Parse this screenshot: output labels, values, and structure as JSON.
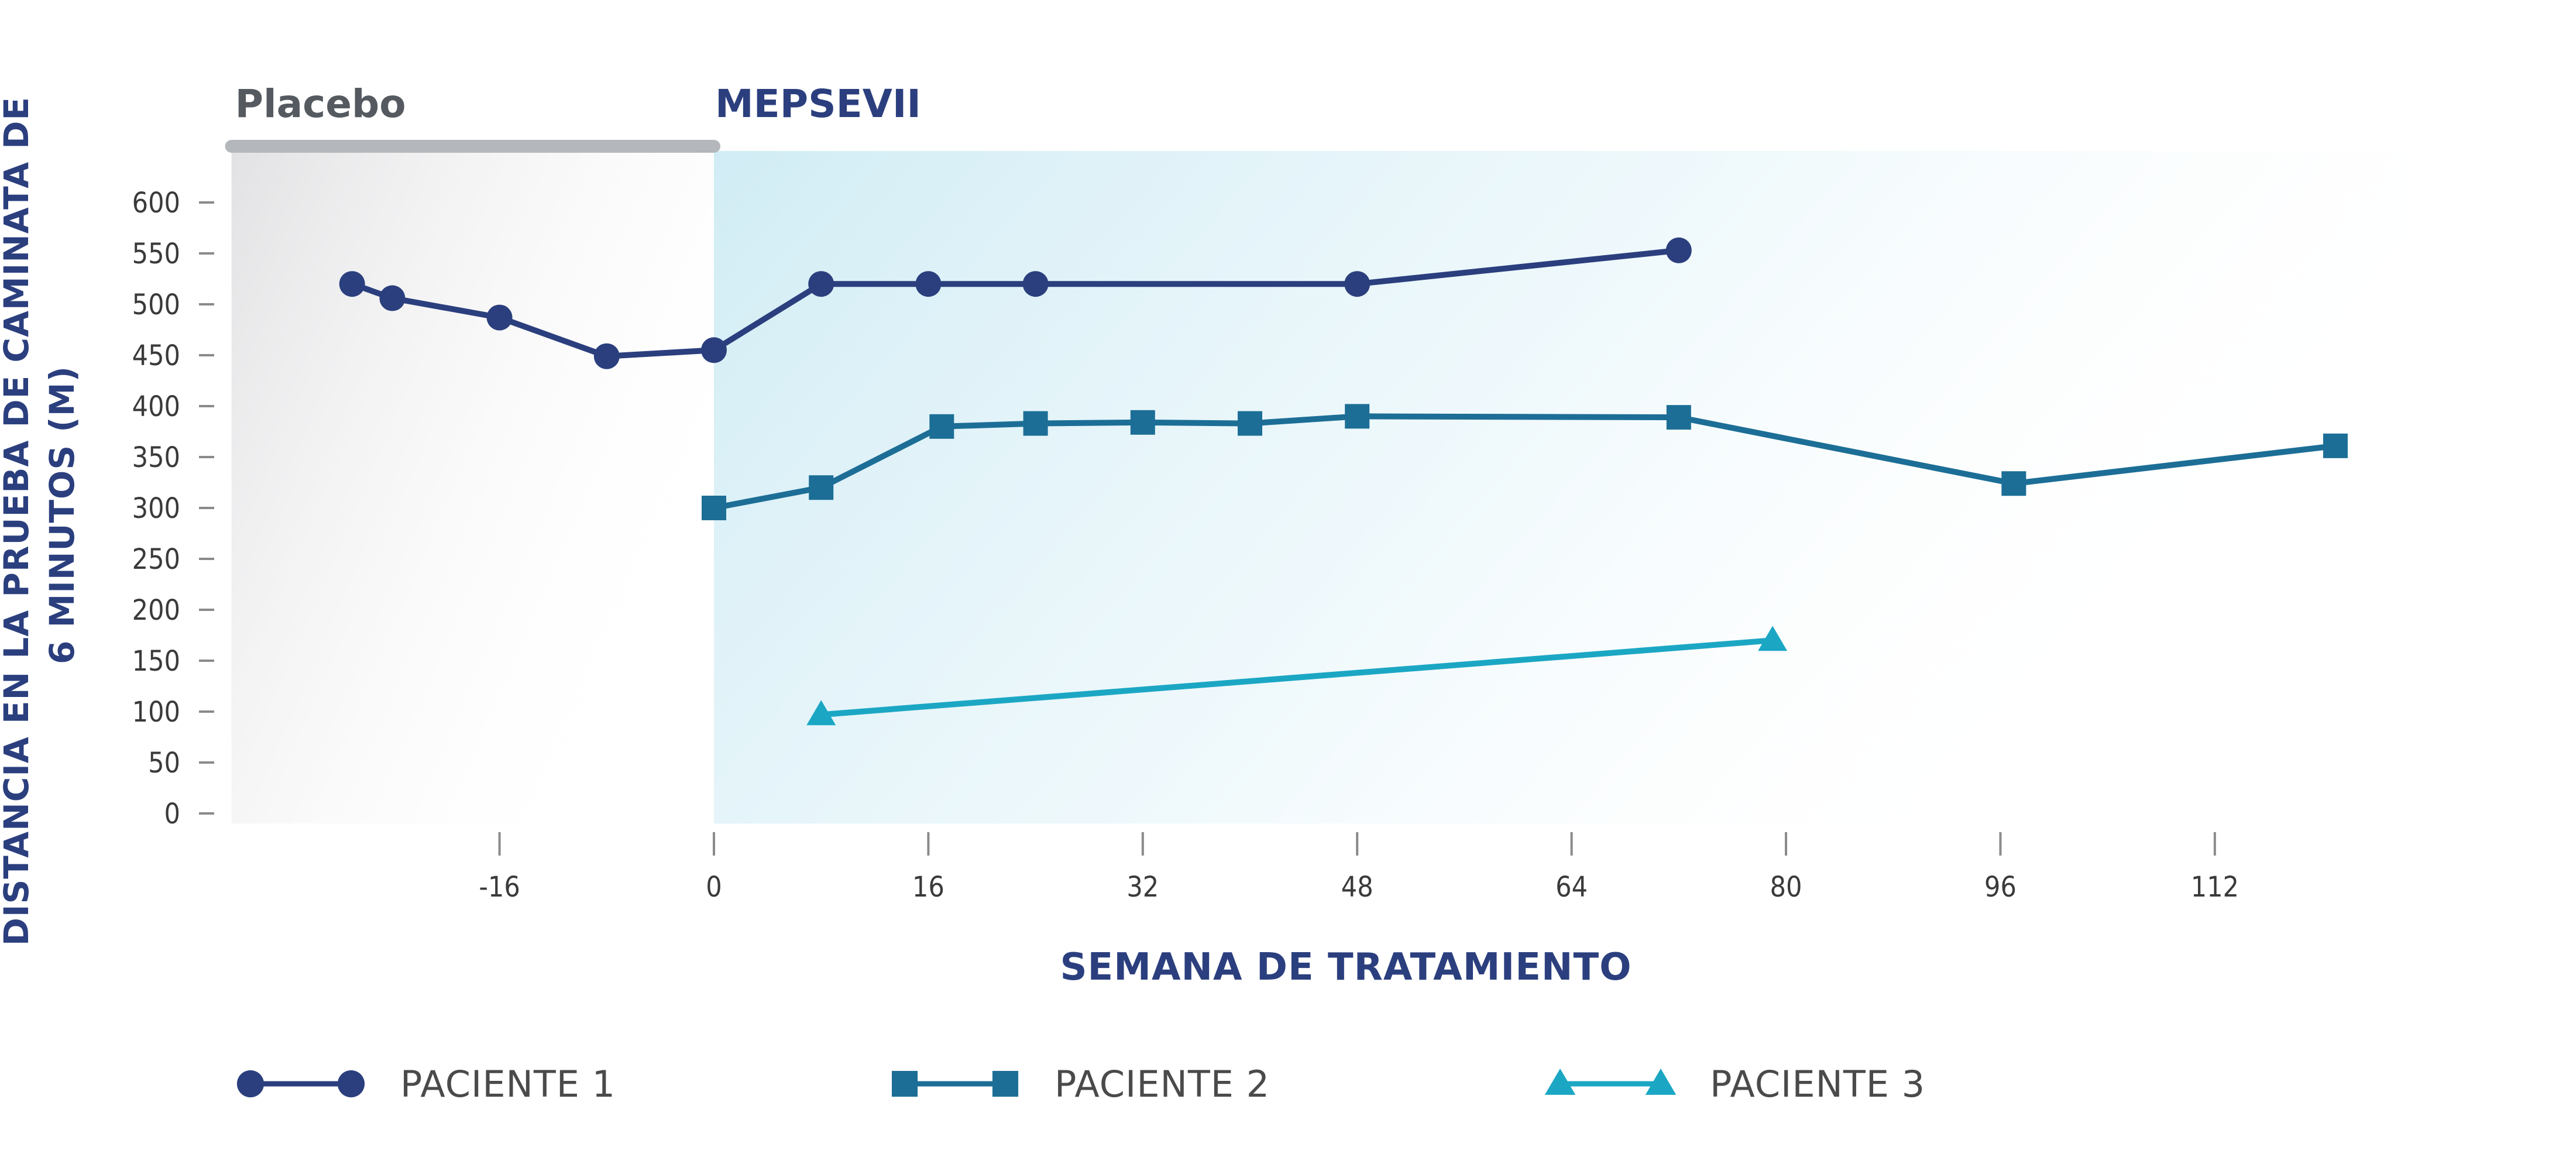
{
  "chart_data": {
    "type": "line",
    "title": "",
    "xlabel": "SEMANA DE TRATAMIENTO",
    "ylabel_lines": [
      "DISTANCIA EN LA PRUEBA DE CAMINATA DE",
      "6 MINUTOS (M)"
    ],
    "xlim": [
      -46,
      170
    ],
    "ylim": [
      0,
      600
    ],
    "x_ticks": [
      -16,
      0,
      16,
      32,
      48,
      64,
      80,
      96,
      112
    ],
    "y_ticks": [
      0,
      50,
      100,
      150,
      200,
      250,
      300,
      350,
      400,
      450,
      500,
      550,
      600
    ],
    "grid": false,
    "legend_position": "bottom",
    "phases": [
      {
        "label": "Placebo",
        "x_start": -36,
        "x_end": 0,
        "color": "#b4b7bb"
      },
      {
        "label": "MEPSEVII",
        "x_start": 0,
        "x_end": 134,
        "color_start": "#2b3f7e",
        "color_end": "#4fc6dc"
      }
    ],
    "series": [
      {
        "name": "PACIENTE 1",
        "marker": "circle",
        "color": "#2b3f7e",
        "x": [
          -27,
          -24,
          -16,
          -8,
          0,
          8,
          16,
          24,
          48,
          72
        ],
        "y": [
          520,
          506,
          487,
          449,
          455,
          520,
          520,
          520,
          520,
          553
        ]
      },
      {
        "name": "PACIENTE 2",
        "marker": "square",
        "color": "#1c6e96",
        "x": [
          0,
          8,
          17,
          24,
          32,
          40,
          48,
          72,
          97,
          121
        ],
        "y": [
          300,
          320,
          380,
          383,
          384,
          383,
          390,
          389,
          324,
          361
        ]
      },
      {
        "name": "PACIENTE 3",
        "marker": "triangle",
        "color": "#1ba7c4",
        "x": [
          8,
          79
        ],
        "y": [
          97,
          170
        ]
      }
    ]
  }
}
